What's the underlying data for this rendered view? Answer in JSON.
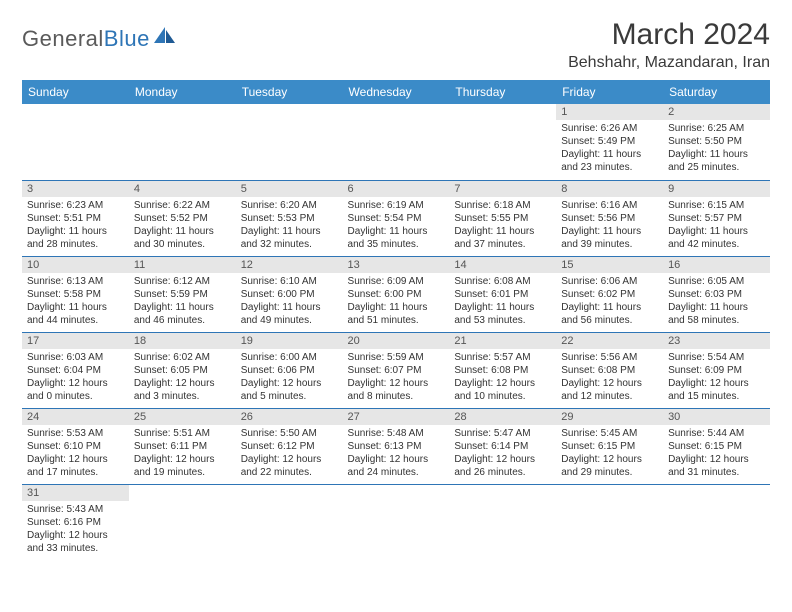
{
  "logo": {
    "text1": "General",
    "text2": "Blue"
  },
  "title": "March 2024",
  "location": "Behshahr, Mazandaran, Iran",
  "colors": {
    "header_bg": "#3b8bc8",
    "header_text": "#ffffff",
    "daynum_bg": "#e6e6e6",
    "row_border": "#2e75b6",
    "logo_gray": "#5a5a5a",
    "logo_blue": "#2e75b6"
  },
  "weekdays": [
    "Sunday",
    "Monday",
    "Tuesday",
    "Wednesday",
    "Thursday",
    "Friday",
    "Saturday"
  ],
  "weeks": [
    [
      {
        "n": "",
        "lines": []
      },
      {
        "n": "",
        "lines": []
      },
      {
        "n": "",
        "lines": []
      },
      {
        "n": "",
        "lines": []
      },
      {
        "n": "",
        "lines": []
      },
      {
        "n": "1",
        "lines": [
          "Sunrise: 6:26 AM",
          "Sunset: 5:49 PM",
          "Daylight: 11 hours and 23 minutes."
        ]
      },
      {
        "n": "2",
        "lines": [
          "Sunrise: 6:25 AM",
          "Sunset: 5:50 PM",
          "Daylight: 11 hours and 25 minutes."
        ]
      }
    ],
    [
      {
        "n": "3",
        "lines": [
          "Sunrise: 6:23 AM",
          "Sunset: 5:51 PM",
          "Daylight: 11 hours and 28 minutes."
        ]
      },
      {
        "n": "4",
        "lines": [
          "Sunrise: 6:22 AM",
          "Sunset: 5:52 PM",
          "Daylight: 11 hours and 30 minutes."
        ]
      },
      {
        "n": "5",
        "lines": [
          "Sunrise: 6:20 AM",
          "Sunset: 5:53 PM",
          "Daylight: 11 hours and 32 minutes."
        ]
      },
      {
        "n": "6",
        "lines": [
          "Sunrise: 6:19 AM",
          "Sunset: 5:54 PM",
          "Daylight: 11 hours and 35 minutes."
        ]
      },
      {
        "n": "7",
        "lines": [
          "Sunrise: 6:18 AM",
          "Sunset: 5:55 PM",
          "Daylight: 11 hours and 37 minutes."
        ]
      },
      {
        "n": "8",
        "lines": [
          "Sunrise: 6:16 AM",
          "Sunset: 5:56 PM",
          "Daylight: 11 hours and 39 minutes."
        ]
      },
      {
        "n": "9",
        "lines": [
          "Sunrise: 6:15 AM",
          "Sunset: 5:57 PM",
          "Daylight: 11 hours and 42 minutes."
        ]
      }
    ],
    [
      {
        "n": "10",
        "lines": [
          "Sunrise: 6:13 AM",
          "Sunset: 5:58 PM",
          "Daylight: 11 hours and 44 minutes."
        ]
      },
      {
        "n": "11",
        "lines": [
          "Sunrise: 6:12 AM",
          "Sunset: 5:59 PM",
          "Daylight: 11 hours and 46 minutes."
        ]
      },
      {
        "n": "12",
        "lines": [
          "Sunrise: 6:10 AM",
          "Sunset: 6:00 PM",
          "Daylight: 11 hours and 49 minutes."
        ]
      },
      {
        "n": "13",
        "lines": [
          "Sunrise: 6:09 AM",
          "Sunset: 6:00 PM",
          "Daylight: 11 hours and 51 minutes."
        ]
      },
      {
        "n": "14",
        "lines": [
          "Sunrise: 6:08 AM",
          "Sunset: 6:01 PM",
          "Daylight: 11 hours and 53 minutes."
        ]
      },
      {
        "n": "15",
        "lines": [
          "Sunrise: 6:06 AM",
          "Sunset: 6:02 PM",
          "Daylight: 11 hours and 56 minutes."
        ]
      },
      {
        "n": "16",
        "lines": [
          "Sunrise: 6:05 AM",
          "Sunset: 6:03 PM",
          "Daylight: 11 hours and 58 minutes."
        ]
      }
    ],
    [
      {
        "n": "17",
        "lines": [
          "Sunrise: 6:03 AM",
          "Sunset: 6:04 PM",
          "Daylight: 12 hours and 0 minutes."
        ]
      },
      {
        "n": "18",
        "lines": [
          "Sunrise: 6:02 AM",
          "Sunset: 6:05 PM",
          "Daylight: 12 hours and 3 minutes."
        ]
      },
      {
        "n": "19",
        "lines": [
          "Sunrise: 6:00 AM",
          "Sunset: 6:06 PM",
          "Daylight: 12 hours and 5 minutes."
        ]
      },
      {
        "n": "20",
        "lines": [
          "Sunrise: 5:59 AM",
          "Sunset: 6:07 PM",
          "Daylight: 12 hours and 8 minutes."
        ]
      },
      {
        "n": "21",
        "lines": [
          "Sunrise: 5:57 AM",
          "Sunset: 6:08 PM",
          "Daylight: 12 hours and 10 minutes."
        ]
      },
      {
        "n": "22",
        "lines": [
          "Sunrise: 5:56 AM",
          "Sunset: 6:08 PM",
          "Daylight: 12 hours and 12 minutes."
        ]
      },
      {
        "n": "23",
        "lines": [
          "Sunrise: 5:54 AM",
          "Sunset: 6:09 PM",
          "Daylight: 12 hours and 15 minutes."
        ]
      }
    ],
    [
      {
        "n": "24",
        "lines": [
          "Sunrise: 5:53 AM",
          "Sunset: 6:10 PM",
          "Daylight: 12 hours and 17 minutes."
        ]
      },
      {
        "n": "25",
        "lines": [
          "Sunrise: 5:51 AM",
          "Sunset: 6:11 PM",
          "Daylight: 12 hours and 19 minutes."
        ]
      },
      {
        "n": "26",
        "lines": [
          "Sunrise: 5:50 AM",
          "Sunset: 6:12 PM",
          "Daylight: 12 hours and 22 minutes."
        ]
      },
      {
        "n": "27",
        "lines": [
          "Sunrise: 5:48 AM",
          "Sunset: 6:13 PM",
          "Daylight: 12 hours and 24 minutes."
        ]
      },
      {
        "n": "28",
        "lines": [
          "Sunrise: 5:47 AM",
          "Sunset: 6:14 PM",
          "Daylight: 12 hours and 26 minutes."
        ]
      },
      {
        "n": "29",
        "lines": [
          "Sunrise: 5:45 AM",
          "Sunset: 6:15 PM",
          "Daylight: 12 hours and 29 minutes."
        ]
      },
      {
        "n": "30",
        "lines": [
          "Sunrise: 5:44 AM",
          "Sunset: 6:15 PM",
          "Daylight: 12 hours and 31 minutes."
        ]
      }
    ],
    [
      {
        "n": "31",
        "lines": [
          "Sunrise: 5:43 AM",
          "Sunset: 6:16 PM",
          "Daylight: 12 hours and 33 minutes."
        ]
      },
      {
        "n": "",
        "lines": []
      },
      {
        "n": "",
        "lines": []
      },
      {
        "n": "",
        "lines": []
      },
      {
        "n": "",
        "lines": []
      },
      {
        "n": "",
        "lines": []
      },
      {
        "n": "",
        "lines": []
      }
    ]
  ]
}
